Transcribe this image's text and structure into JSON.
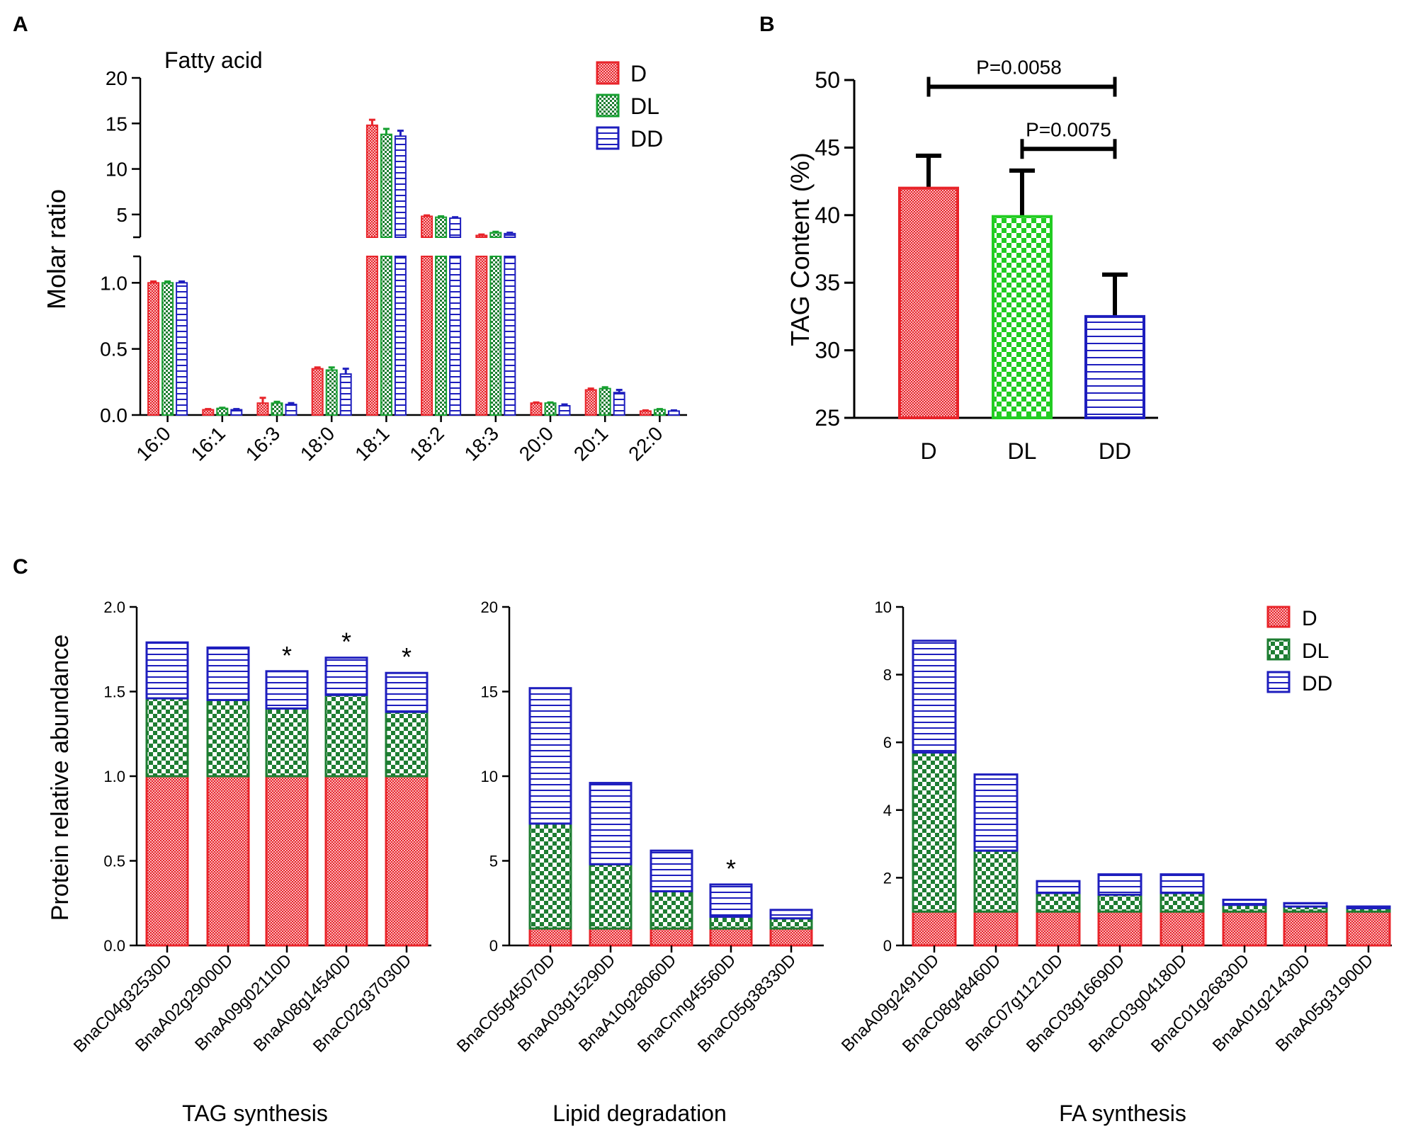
{
  "colors": {
    "D": "#e8242a",
    "DL": "#16a030",
    "DL_dark": "#1e7d32",
    "DD": "#1e1ebe",
    "B_DL": "#22cc22"
  },
  "panels": {
    "a": "A",
    "b": "B",
    "c": "C"
  },
  "chart_data": [
    {
      "type": "bar",
      "title": "Fatty acid",
      "ylabel": "Molar ratio",
      "xlabel": "",
      "categories": [
        "16:0",
        "16:1",
        "16:3",
        "18:0",
        "18:1",
        "18:2",
        "18:3",
        "20:0",
        "20:1",
        "22:0"
      ],
      "series": [
        {
          "name": "D",
          "values": [
            1.0,
            0.04,
            0.09,
            0.35,
            14.8,
            4.8,
            2.7,
            0.09,
            0.19,
            0.03
          ],
          "errors": [
            0.01,
            0.005,
            0.04,
            0.01,
            0.6,
            0.1,
            0.1,
            0.005,
            0.01,
            0.005
          ]
        },
        {
          "name": "DL",
          "values": [
            1.0,
            0.05,
            0.09,
            0.34,
            13.8,
            4.7,
            3.0,
            0.09,
            0.2,
            0.04
          ],
          "errors": [
            0.01,
            0.005,
            0.01,
            0.02,
            0.6,
            0.1,
            0.1,
            0.005,
            0.01,
            0.005
          ]
        },
        {
          "name": "DD",
          "values": [
            1.0,
            0.04,
            0.08,
            0.31,
            13.6,
            4.6,
            2.9,
            0.07,
            0.17,
            0.03
          ],
          "errors": [
            0.01,
            0.005,
            0.01,
            0.04,
            0.6,
            0.1,
            0.1,
            0.01,
            0.02,
            0.005
          ]
        }
      ],
      "ylim_lower": [
        0,
        1.2
      ],
      "ylim_upper": [
        2.5,
        20
      ],
      "yticks_lower": [
        "0.0",
        "0.5",
        "1.0"
      ],
      "yticks_upper": [
        "5",
        "10",
        "15",
        "20"
      ],
      "legend": [
        "D",
        "DL",
        "DD"
      ],
      "legend_position": "top-right"
    },
    {
      "type": "bar",
      "title": "",
      "ylabel": "TAG Content (%)",
      "xlabel": "",
      "categories": [
        "D",
        "DL",
        "DD"
      ],
      "values": [
        42.0,
        39.9,
        32.5
      ],
      "errors": [
        2.4,
        3.4,
        3.1
      ],
      "ylim": [
        25,
        50
      ],
      "yticks": [
        "25",
        "30",
        "35",
        "40",
        "45",
        "50"
      ],
      "annotations": [
        {
          "text": "P=0.0058",
          "from": "D",
          "to": "DD",
          "y": 49.5
        },
        {
          "text": "P=0.0075",
          "from": "DL",
          "to": "DD",
          "y": 44.9
        }
      ]
    },
    {
      "type": "bar",
      "stacked": true,
      "title": "",
      "xlabel": "TAG synthesis",
      "ylabel": "Protein relative abundance",
      "categories": [
        "BnaC04g32530D",
        "BnaA02g29000D",
        "BnaA09g02110D",
        "BnaA08g14540D",
        "BnaC02g37030D"
      ],
      "series": [
        {
          "name": "D",
          "values": [
            1.0,
            1.0,
            1.0,
            1.0,
            1.0
          ]
        },
        {
          "name": "DL",
          "values": [
            0.46,
            0.45,
            0.4,
            0.48,
            0.38
          ]
        },
        {
          "name": "DD",
          "values": [
            0.33,
            0.31,
            0.22,
            0.22,
            0.23
          ]
        }
      ],
      "ylim": [
        0,
        2.0
      ],
      "yticks": [
        "0.0",
        "0.5",
        "1.0",
        "1.5",
        "2.0"
      ],
      "significance": [
        "",
        "",
        "*",
        "*",
        "*"
      ]
    },
    {
      "type": "bar",
      "stacked": true,
      "title": "",
      "xlabel": "Lipid degradation",
      "ylabel": "",
      "categories": [
        "BnaC05g45070D",
        "BnaA03g15290D",
        "BnaA10g28060D",
        "BnaCnng45560D",
        "BnaC05g38330D"
      ],
      "series": [
        {
          "name": "D",
          "values": [
            1.0,
            1.0,
            1.0,
            1.0,
            1.0
          ]
        },
        {
          "name": "DL",
          "values": [
            6.2,
            3.8,
            2.2,
            0.7,
            0.6
          ]
        },
        {
          "name": "DD",
          "values": [
            8.0,
            4.8,
            2.4,
            1.9,
            0.5
          ]
        }
      ],
      "ylim": [
        0,
        20
      ],
      "yticks": [
        "0",
        "5",
        "10",
        "15",
        "20"
      ],
      "significance": [
        "",
        "",
        "",
        "*",
        ""
      ]
    },
    {
      "type": "bar",
      "stacked": true,
      "title": "",
      "xlabel": "FA synthesis",
      "ylabel": "",
      "categories": [
        "BnaA09g24910D",
        "BnaC08g48460D",
        "BnaC07g11210D",
        "BnaC03g16690D",
        "BnaC03g04180D",
        "BnaC01g26830D",
        "BnaA01g21430D",
        "BnaA05g31900D"
      ],
      "series": [
        {
          "name": "D",
          "values": [
            1.0,
            1.0,
            1.0,
            1.0,
            1.0,
            1.0,
            1.0,
            1.0
          ]
        },
        {
          "name": "DL",
          "values": [
            4.7,
            1.8,
            0.55,
            0.5,
            0.55,
            0.2,
            0.15,
            0.1
          ]
        },
        {
          "name": "DD",
          "values": [
            3.3,
            2.25,
            0.35,
            0.6,
            0.55,
            0.15,
            0.1,
            0.05
          ]
        }
      ],
      "ylim": [
        0,
        10
      ],
      "yticks": [
        "0",
        "2",
        "4",
        "6",
        "8",
        "10"
      ],
      "legend": [
        "D",
        "DL",
        "DD"
      ],
      "legend_position": "top-right"
    }
  ]
}
